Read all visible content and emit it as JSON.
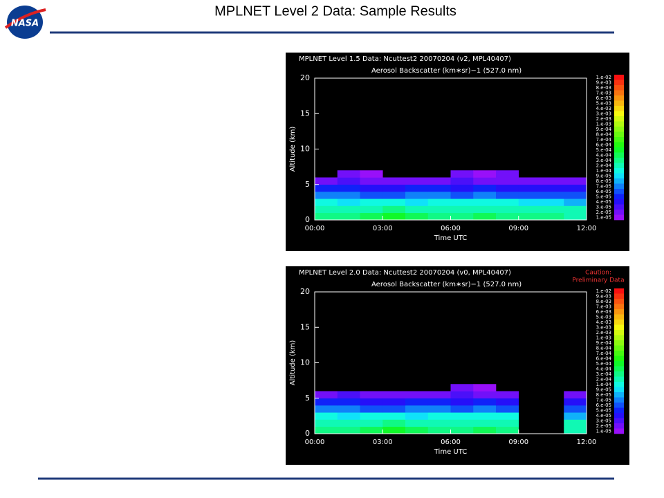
{
  "header": {
    "title": "MPLNET Level 2 Data:  Sample Results",
    "logo": "NASA"
  },
  "chart_data": [
    {
      "type": "heatmap",
      "title": "MPLNET Level 1.5 Data: Ncuttest2 20070204 (v2, MPL40407)",
      "subtitle": "Aerosol Backscatter (km∗sr)−1 (527.0 nm)",
      "x_label": "Time UTC",
      "y_label": "Altitude (km)",
      "xlim": [
        0,
        12
      ],
      "ylim": [
        0,
        20
      ],
      "xticks": [
        {
          "value": 0,
          "label": "00:00"
        },
        {
          "value": 3,
          "label": "03:00"
        },
        {
          "value": 6,
          "label": "06:00"
        },
        {
          "value": 9,
          "label": "09:00"
        },
        {
          "value": 12,
          "label": "12:00"
        }
      ],
      "yticks": [
        0,
        5,
        10,
        15,
        20
      ],
      "xbins": [
        0,
        1,
        2,
        3,
        4,
        5,
        6,
        7,
        8,
        9,
        10,
        11,
        12
      ],
      "ybins": [
        0,
        1,
        2,
        3,
        4,
        5,
        6,
        7
      ],
      "z": [
        [
          0.0003,
          0.0003,
          0.0004,
          0.0005,
          0.0004,
          0.0003,
          0.0003,
          0.0004,
          0.0003,
          0.0003,
          0.0003,
          0.0002
        ],
        [
          0.0002,
          0.0002,
          0.0002,
          0.0003,
          0.0002,
          0.0002,
          0.0002,
          0.0002,
          0.0002,
          0.0002,
          0.0002,
          0.0002
        ],
        [
          0.0001,
          9e-05,
          0.0001,
          0.0001,
          9e-05,
          0.0001,
          0.0001,
          0.0001,
          0.0001,
          9e-05,
          9e-05,
          8e-05
        ],
        [
          7e-05,
          7e-05,
          6e-05,
          6e-05,
          7e-05,
          7e-05,
          6e-05,
          7e-05,
          6e-05,
          6e-05,
          6e-05,
          6e-05
        ],
        [
          5e-05,
          5e-05,
          4e-05,
          4e-05,
          5e-05,
          5e-05,
          4e-05,
          5e-05,
          4e-05,
          4e-05,
          4e-05,
          4e-05
        ],
        [
          2e-05,
          3e-05,
          2e-05,
          2e-05,
          2e-05,
          2e-05,
          3e-05,
          2e-05,
          2e-05,
          2e-05,
          2e-05,
          2e-05
        ],
        [
          null,
          2e-05,
          1e-05,
          null,
          null,
          null,
          2e-05,
          1e-05,
          2e-05,
          null,
          null,
          null
        ]
      ],
      "colorbar": [
        {
          "value": 0.01,
          "label": "1.e-02"
        },
        {
          "value": 0.009,
          "label": "9.e-03"
        },
        {
          "value": 0.008,
          "label": "8.e-03"
        },
        {
          "value": 0.007,
          "label": "7.e-03"
        },
        {
          "value": 0.006,
          "label": "6.e-03"
        },
        {
          "value": 0.005,
          "label": "5.e-03"
        },
        {
          "value": 0.004,
          "label": "4.e-03"
        },
        {
          "value": 0.003,
          "label": "3.e-03"
        },
        {
          "value": 0.002,
          "label": "2.e-03"
        },
        {
          "value": 0.001,
          "label": "1.e-03"
        },
        {
          "value": 0.0009,
          "label": "9.e-04"
        },
        {
          "value": 0.0008,
          "label": "8.e-04"
        },
        {
          "value": 0.0007,
          "label": "7.e-04"
        },
        {
          "value": 0.0006,
          "label": "6.e-04"
        },
        {
          "value": 0.0005,
          "label": "5.e-04"
        },
        {
          "value": 0.0004,
          "label": "4.e-04"
        },
        {
          "value": 0.0003,
          "label": "3.e-04"
        },
        {
          "value": 0.0002,
          "label": "2.e-04"
        },
        {
          "value": 0.0001,
          "label": "1.e-04"
        },
        {
          "value": 9e-05,
          "label": "9.e-05"
        },
        {
          "value": 8e-05,
          "label": "8.e-05"
        },
        {
          "value": 7e-05,
          "label": "7.e-05"
        },
        {
          "value": 6e-05,
          "label": "6.e-05"
        },
        {
          "value": 5e-05,
          "label": "5.e-05"
        },
        {
          "value": 4e-05,
          "label": "4.e-05"
        },
        {
          "value": 3e-05,
          "label": "3.e-05"
        },
        {
          "value": 2e-05,
          "label": "2.e-05"
        },
        {
          "value": 1e-05,
          "label": "1.e-05"
        }
      ]
    },
    {
      "type": "heatmap",
      "title": "MPLNET Level 2.0 Data: Ncuttest2 20070204 (v0, MPL40407)",
      "subtitle": "Aerosol Backscatter (km∗sr)−1 (527.0 nm)",
      "note": [
        "Caution:",
        "Preliminary Data"
      ],
      "x_label": "Time UTC",
      "y_label": "Altitude (km)",
      "xlim": [
        0,
        12
      ],
      "ylim": [
        0,
        20
      ],
      "xticks": [
        {
          "value": 0,
          "label": "00:00"
        },
        {
          "value": 3,
          "label": "03:00"
        },
        {
          "value": 6,
          "label": "06:00"
        },
        {
          "value": 9,
          "label": "09:00"
        },
        {
          "value": 12,
          "label": "12:00"
        }
      ],
      "yticks": [
        0,
        5,
        10,
        15,
        20
      ],
      "xbins": [
        0,
        1,
        2,
        3,
        4,
        5,
        6,
        7,
        8,
        9,
        10,
        11,
        12
      ],
      "ybins": [
        0,
        1,
        2,
        3,
        4,
        5,
        6,
        7
      ],
      "z": [
        [
          0.0003,
          0.0003,
          0.0004,
          0.0005,
          0.0004,
          0.0003,
          0.0003,
          0.0004,
          0.0003,
          null,
          null,
          0.0002
        ],
        [
          0.0002,
          0.0002,
          0.0002,
          0.0003,
          0.0002,
          0.0002,
          0.0002,
          0.0002,
          0.0002,
          null,
          null,
          0.0002
        ],
        [
          0.0001,
          9e-05,
          0.0001,
          0.0001,
          9e-05,
          0.0001,
          0.0001,
          0.0001,
          0.0001,
          null,
          null,
          8e-05
        ],
        [
          7e-05,
          7e-05,
          6e-05,
          6e-05,
          7e-05,
          7e-05,
          6e-05,
          7e-05,
          6e-05,
          null,
          null,
          6e-05
        ],
        [
          5e-05,
          5e-05,
          4e-05,
          4e-05,
          5e-05,
          5e-05,
          4e-05,
          5e-05,
          4e-05,
          null,
          null,
          4e-05
        ],
        [
          2e-05,
          3e-05,
          2e-05,
          2e-05,
          2e-05,
          2e-05,
          3e-05,
          2e-05,
          2e-05,
          null,
          null,
          2e-05
        ],
        [
          null,
          null,
          null,
          null,
          null,
          null,
          2e-05,
          1e-05,
          null,
          null,
          null,
          null
        ]
      ],
      "colorbar": [
        {
          "value": 0.01,
          "label": "1.e-02"
        },
        {
          "value": 0.009,
          "label": "9.e-03"
        },
        {
          "value": 0.008,
          "label": "8.e-03"
        },
        {
          "value": 0.007,
          "label": "7.e-03"
        },
        {
          "value": 0.006,
          "label": "6.e-03"
        },
        {
          "value": 0.005,
          "label": "5.e-03"
        },
        {
          "value": 0.004,
          "label": "4.e-03"
        },
        {
          "value": 0.003,
          "label": "3.e-03"
        },
        {
          "value": 0.002,
          "label": "2.e-03"
        },
        {
          "value": 0.001,
          "label": "1.e-03"
        },
        {
          "value": 0.0009,
          "label": "9.e-04"
        },
        {
          "value": 0.0008,
          "label": "8.e-04"
        },
        {
          "value": 0.0007,
          "label": "7.e-04"
        },
        {
          "value": 0.0006,
          "label": "6.e-04"
        },
        {
          "value": 0.0005,
          "label": "5.e-04"
        },
        {
          "value": 0.0004,
          "label": "4.e-04"
        },
        {
          "value": 0.0003,
          "label": "3.e-04"
        },
        {
          "value": 0.0002,
          "label": "2.e-04"
        },
        {
          "value": 0.0001,
          "label": "1.e-04"
        },
        {
          "value": 9e-05,
          "label": "9.e-05"
        },
        {
          "value": 8e-05,
          "label": "8.e-05"
        },
        {
          "value": 7e-05,
          "label": "7.e-05"
        },
        {
          "value": 6e-05,
          "label": "6.e-05"
        },
        {
          "value": 5e-05,
          "label": "5.e-05"
        },
        {
          "value": 4e-05,
          "label": "4.e-05"
        },
        {
          "value": 3e-05,
          "label": "3.e-05"
        },
        {
          "value": 2e-05,
          "label": "2.e-05"
        },
        {
          "value": 1e-05,
          "label": "1.e-05"
        }
      ]
    }
  ]
}
